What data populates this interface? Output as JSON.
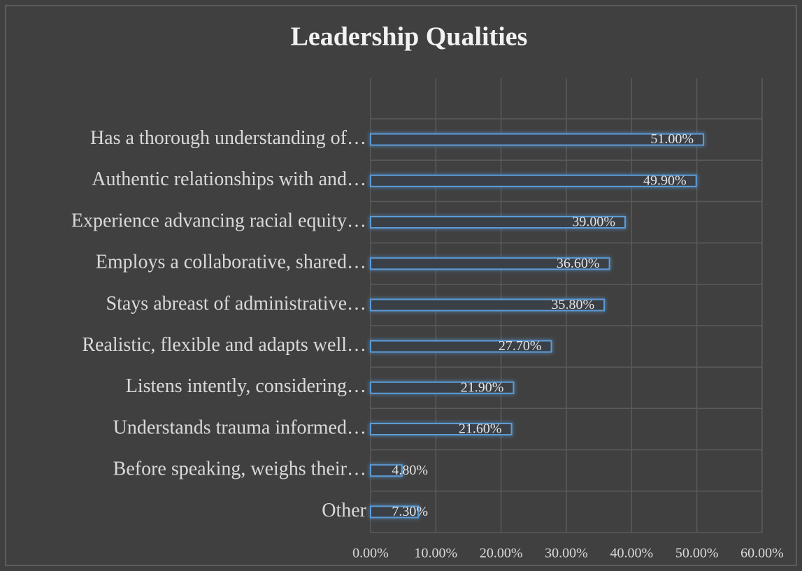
{
  "chart_data": {
    "type": "bar",
    "orientation": "horizontal",
    "title": "Leadership Qualities",
    "categories": [
      "Has a thorough understanding of…",
      "Authentic relationships with and…",
      "Experience advancing racial equity…",
      "Employs a collaborative, shared…",
      "Stays abreast of administrative…",
      "Realistic, flexible and adapts well…",
      "Listens intently, considering…",
      "Understands trauma informed…",
      "Before speaking, weighs their…",
      "Other"
    ],
    "values": [
      51.0,
      49.9,
      39.0,
      36.6,
      35.8,
      27.7,
      21.9,
      21.6,
      4.8,
      7.3
    ],
    "value_labels": [
      "51.00%",
      "49.90%",
      "39.00%",
      "36.60%",
      "35.80%",
      "27.70%",
      "21.90%",
      "21.60%",
      "4.80%",
      "7.30%"
    ],
    "color": "#5b9bd5",
    "xlim": [
      0,
      60
    ],
    "xticks": [
      {
        "value": 0,
        "label": "0.00%"
      },
      {
        "value": 10,
        "label": "10.00%"
      },
      {
        "value": 20,
        "label": "20.00%"
      },
      {
        "value": 30,
        "label": "30.00%"
      },
      {
        "value": 40,
        "label": "40.00%"
      },
      {
        "value": 50,
        "label": "50.00%"
      },
      {
        "value": 60,
        "label": "60.00%"
      }
    ],
    "grid": true
  }
}
